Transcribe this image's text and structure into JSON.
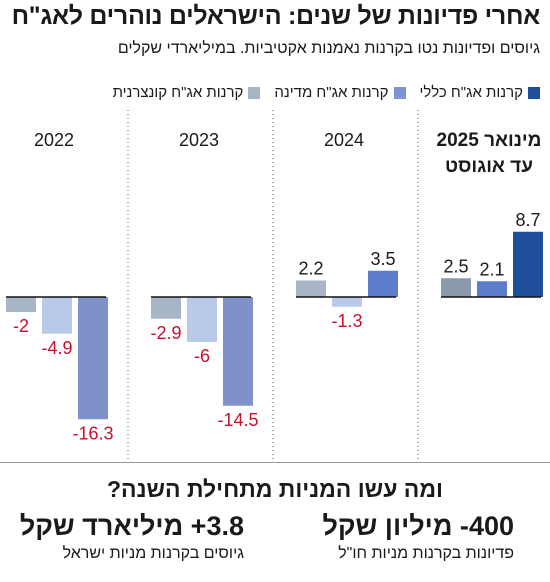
{
  "header": {
    "title": "אחרי פדיונות של שנים: הישראלים נוהרים לאג\"ח",
    "subtitle": "גיוסים ופדיונות נטו בקרנות נאמנות אקטיביות. במיליארדי שקלים"
  },
  "legend": [
    {
      "label": "קרנות אג\"ח כללי",
      "color": "#1f4e9c"
    },
    {
      "label": "קרנות אג\"ח מדינה",
      "color": "#7e95d2"
    },
    {
      "label": "קרנות אג\"ח קונצרנית",
      "color": "#a7b5c6"
    }
  ],
  "chart_data": {
    "type": "bar",
    "categories": [
      "2022",
      "2023",
      "2024",
      "מינואר 2025 עד אוגוסט"
    ],
    "series": [
      {
        "name": "קרנות אג\"ח קונצרנית",
        "values": [
          -2,
          -2.9,
          2.2,
          2.5
        ]
      },
      {
        "name": "קרנות אג\"ח מדינה",
        "values": [
          -4.9,
          -6,
          -1.3,
          2.1
        ]
      },
      {
        "name": "קרנות אג\"ח כללי",
        "values": [
          -16.3,
          -14.5,
          3.5,
          8.7
        ]
      }
    ],
    "value_labels": [
      [
        "-2",
        "-4.9",
        "-16.3"
      ],
      [
        "-2.9",
        "-6",
        "-14.5"
      ],
      [
        "2.2",
        "-1.3",
        "3.5"
      ],
      [
        "2.5",
        "2.1",
        "8.7"
      ]
    ],
    "category_labels": [
      {
        "lines": [
          "2022"
        ],
        "bold": false
      },
      {
        "lines": [
          "2023"
        ],
        "bold": false
      },
      {
        "lines": [
          "2024"
        ],
        "bold": false
      },
      {
        "lines": [
          "מינואר 2025",
          "עד אוגוסט"
        ],
        "bold": true
      }
    ],
    "colors": {
      "fills": [
        "#a7b5c6",
        "#b9c9ea",
        "#7f91c9"
      ],
      "fills_positive": [
        "#a7b5c6",
        "#7e95d2",
        "#5b7dcc"
      ],
      "latest_fills": [
        "#8a9aab",
        "#5b7dcc",
        "#1f4e9c"
      ],
      "negative_label": "#c8102e",
      "positive_label": "#1a1a1a"
    },
    "grid": false
  },
  "question": "ומה עשו המניות מתחילת השנה?",
  "stats": [
    {
      "big": "400- מיליון שקל",
      "small": "פדיונות בקרנות מניות חו\"ל"
    },
    {
      "big": "3.8+ מיליארד שקל",
      "small": "גיוסים בקרנות מניות ישראל"
    }
  ]
}
